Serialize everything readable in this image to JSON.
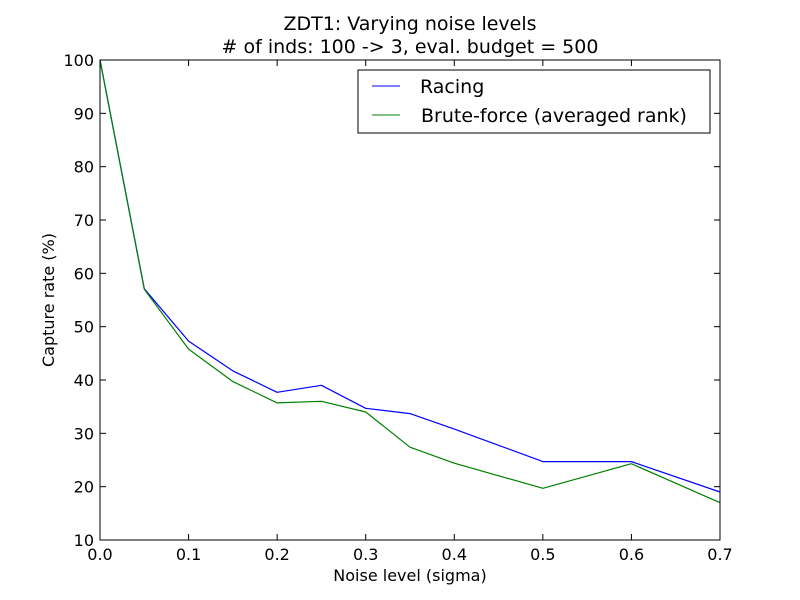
{
  "chart_data": {
    "type": "line",
    "title": "ZDT1: Varying noise levels",
    "subtitle": "# of inds: 100 -> 3, eval. budget = 500",
    "xlabel": "Noise level (sigma)",
    "ylabel": "Capture rate (%)",
    "xlim": [
      0.0,
      0.7
    ],
    "ylim": [
      10,
      100
    ],
    "x_ticks": [
      "0.0",
      "0.1",
      "0.2",
      "0.3",
      "0.4",
      "0.5",
      "0.6",
      "0.7"
    ],
    "y_ticks": [
      "10",
      "20",
      "30",
      "40",
      "50",
      "60",
      "70",
      "80",
      "90",
      "100"
    ],
    "x": [
      0.0,
      0.05,
      0.1,
      0.15,
      0.2,
      0.25,
      0.3,
      0.35,
      0.4,
      0.5,
      0.6,
      0.7
    ],
    "series": [
      {
        "name": "Racing",
        "color": "#0000ff",
        "values": [
          100,
          57.1,
          47.3,
          41.7,
          37.7,
          39.0,
          34.7,
          33.7,
          30.8,
          24.7,
          24.7,
          19.0
        ]
      },
      {
        "name": "Brute-force (averaged rank)",
        "color": "#008000",
        "values": [
          100,
          57.0,
          45.8,
          39.7,
          35.7,
          36.0,
          34.0,
          27.4,
          24.4,
          19.7,
          24.3,
          17.0
        ]
      }
    ],
    "legend_position": "top-right",
    "grid": false
  }
}
